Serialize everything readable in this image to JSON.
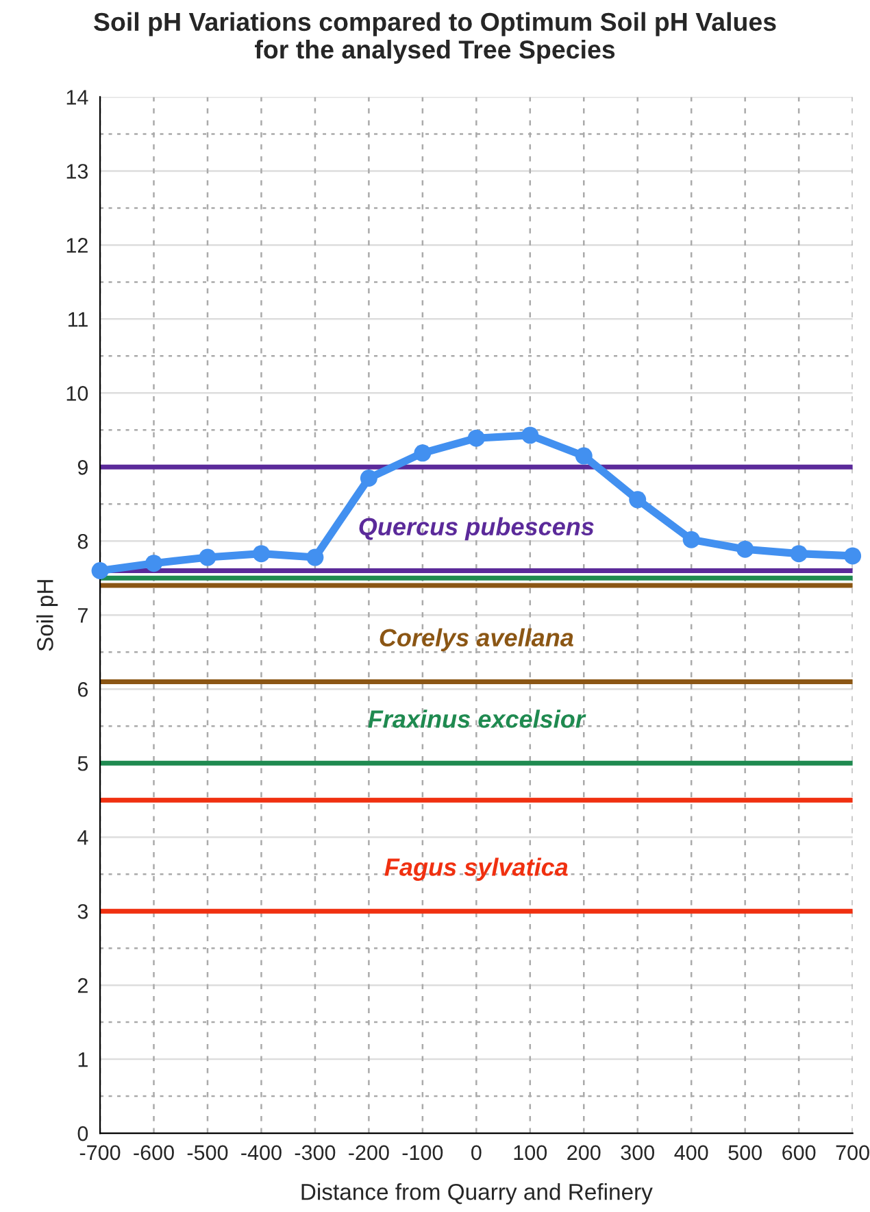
{
  "chart_data": {
    "type": "line",
    "title": "Soil pH Variations compared to Optimum Soil pH Values\nfor the analysed Tree Species",
    "xlabel": "Distance from Quarry and Refinery",
    "ylabel": "Soil pH",
    "x": [
      -700,
      -600,
      -500,
      -400,
      -300,
      -200,
      -100,
      0,
      100,
      200,
      300,
      400,
      500,
      600,
      700
    ],
    "series": [
      {
        "color": "#4290f0",
        "values": [
          7.6,
          7.7,
          7.78,
          7.83,
          7.78,
          8.85,
          9.19,
          9.39,
          9.43,
          9.15,
          8.56,
          8.02,
          7.89,
          7.83,
          7.8
        ]
      }
    ],
    "marker": "circle",
    "line_style": "solid",
    "ref_lines": [
      {
        "axis": "y",
        "value": 9,
        "color": "#5b2a9a"
      },
      {
        "axis": "y",
        "value": 7.6,
        "color": "#5b2a9a",
        "label": "Quercus pubescens"
      },
      {
        "axis": "y",
        "value": 7.5,
        "color": "#1f8a50"
      },
      {
        "axis": "y",
        "value": 7.4,
        "color": "#8b5614"
      },
      {
        "axis": "y",
        "value": 6.1,
        "color": "#8b5614",
        "label": "Corelys avellana"
      },
      {
        "axis": "y",
        "value": 5,
        "color": "#1f8a50",
        "label": "Fraxinus excelsior"
      },
      {
        "axis": "y",
        "value": 4.5,
        "color": "#f03010"
      },
      {
        "axis": "y",
        "value": 3,
        "color": "#f03010",
        "label": "Fagus sylvatica"
      }
    ],
    "xlim": [
      -700,
      700
    ],
    "xticks": [
      -700,
      -600,
      -500,
      -400,
      -300,
      -200,
      -100,
      0,
      100,
      200,
      300,
      400,
      500,
      600,
      700
    ],
    "ylim": [
      0,
      14
    ],
    "yticks": [
      0,
      1,
      2,
      3,
      4,
      5,
      6,
      7,
      8,
      9,
      10,
      11,
      12,
      13,
      14
    ],
    "grid": true
  }
}
